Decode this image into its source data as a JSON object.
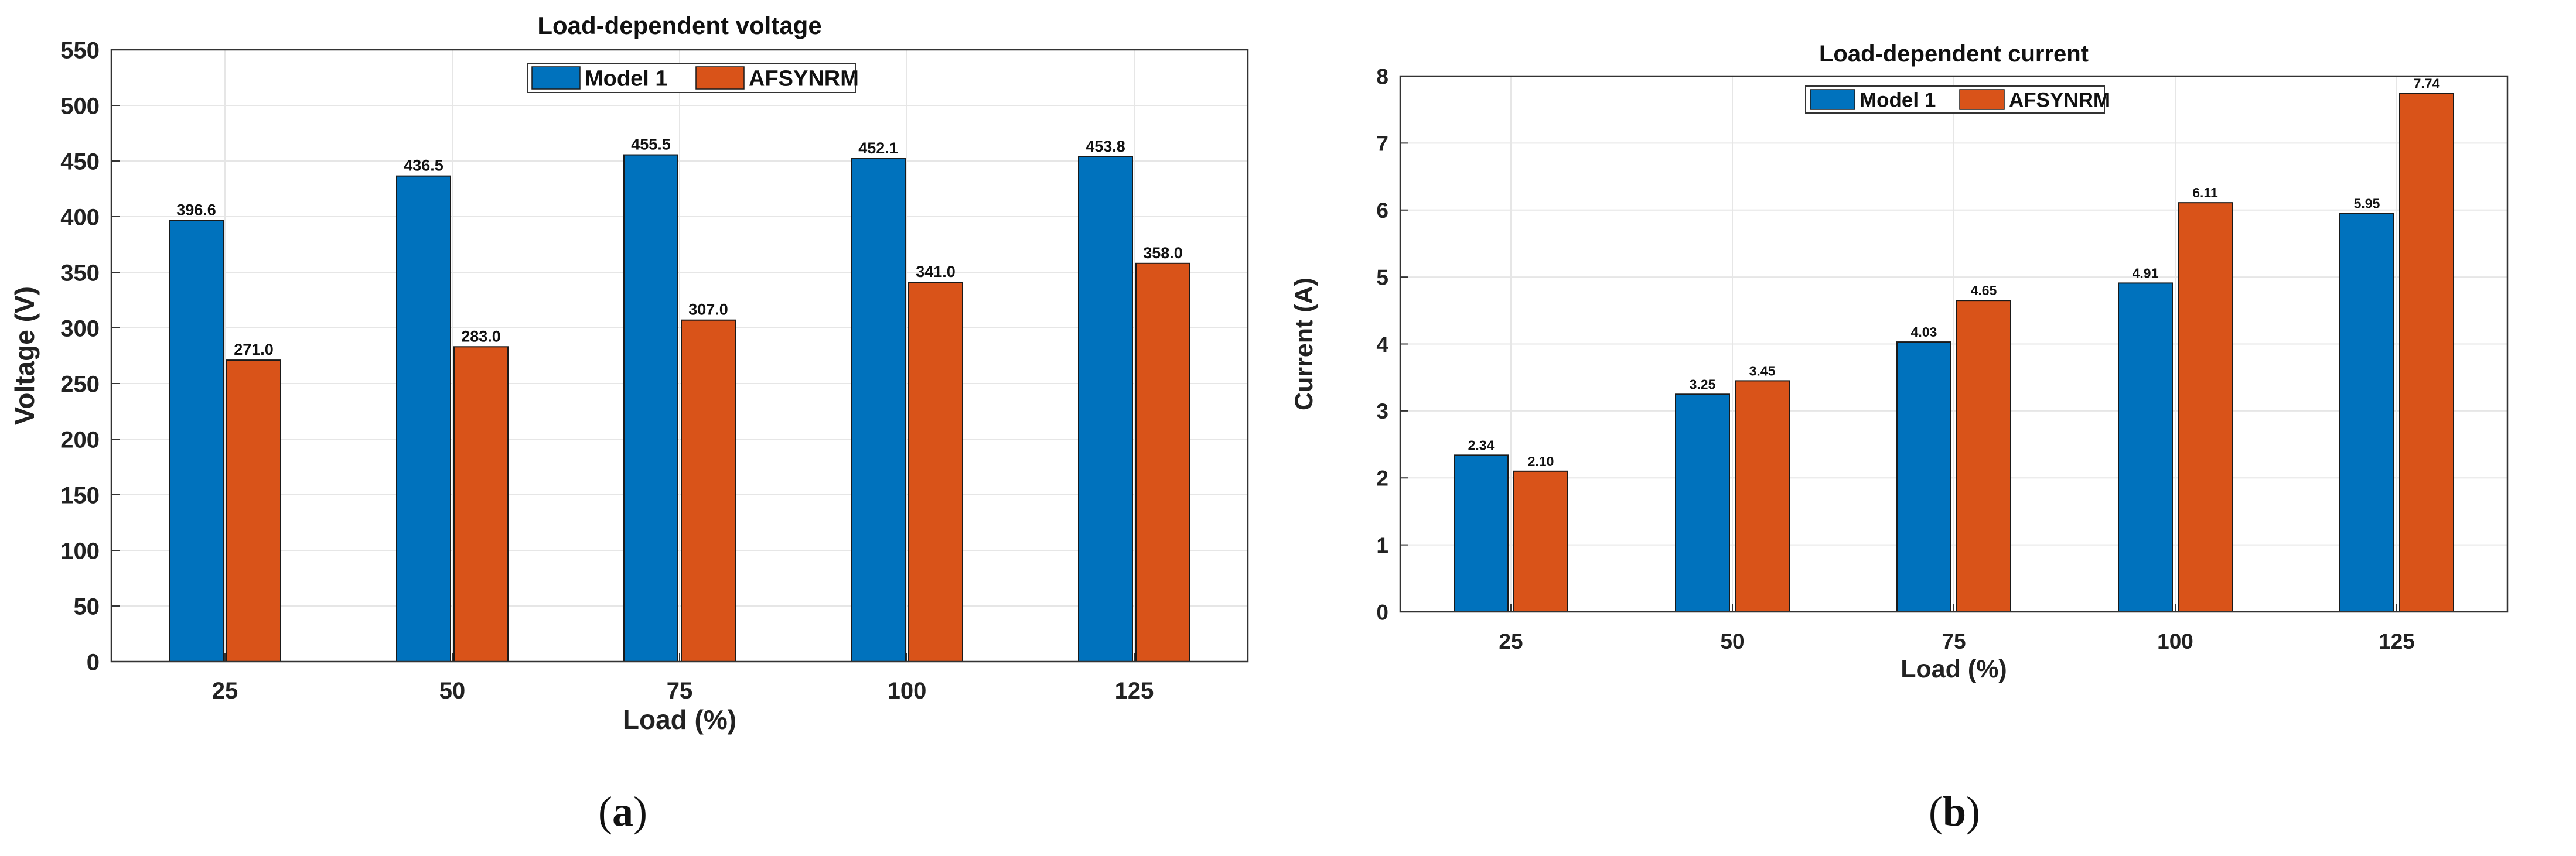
{
  "colors": {
    "model1": "#0072BD",
    "afsynrm": "#D95319"
  },
  "chart_data": [
    {
      "type": "bar",
      "title": "Load-dependent voltage",
      "xlabel": "Load (%)",
      "ylabel": "Voltage (V)",
      "categories": [
        "25",
        "50",
        "75",
        "100",
        "125"
      ],
      "ylim": [
        0,
        550
      ],
      "yticks": [
        "0",
        "50",
        "100",
        "150",
        "200",
        "250",
        "300",
        "350",
        "400",
        "450",
        "500",
        "550"
      ],
      "series": [
        {
          "name": "Model 1",
          "values": [
            396.6,
            436.5,
            455.5,
            452.1,
            453.8
          ],
          "labels": [
            "396.6",
            "436.5",
            "455.5",
            "452.1",
            "453.8"
          ]
        },
        {
          "name": "AFSYNRM",
          "values": [
            271.0,
            283.0,
            307.0,
            341.0,
            358.0
          ],
          "labels": [
            "271.0",
            "283.0",
            "307.0",
            "341.0",
            "358.0"
          ]
        }
      ],
      "grid": true,
      "legend": "top-center",
      "caption": "(a)"
    },
    {
      "type": "bar",
      "title": "Load-dependent current",
      "xlabel": "Load (%)",
      "ylabel": "Current (A)",
      "categories": [
        "25",
        "50",
        "75",
        "100",
        "125"
      ],
      "ylim": [
        0,
        8
      ],
      "yticks": [
        "0",
        "1",
        "2",
        "3",
        "4",
        "5",
        "6",
        "7",
        "8"
      ],
      "series": [
        {
          "name": "Model 1",
          "values": [
            2.34,
            3.25,
            4.03,
            4.91,
            5.95
          ],
          "labels": [
            "2.34",
            "3.25",
            "4.03",
            "4.91",
            "5.95"
          ]
        },
        {
          "name": "AFSYNRM",
          "values": [
            2.1,
            3.45,
            4.65,
            6.11,
            7.74
          ],
          "labels": [
            "2.10",
            "3.45",
            "4.65",
            "6.11",
            "7.74"
          ]
        }
      ],
      "grid": true,
      "legend": "top-center",
      "caption": "(b)"
    }
  ]
}
